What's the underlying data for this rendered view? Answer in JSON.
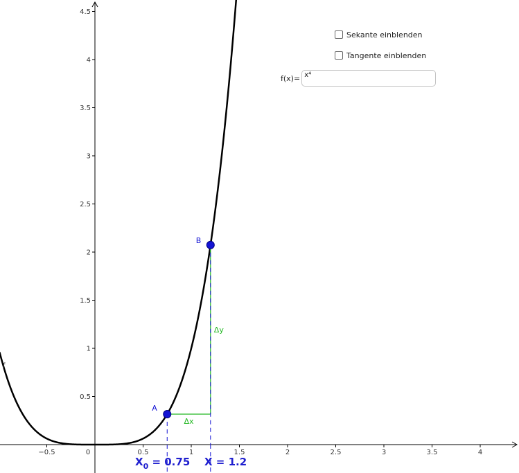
{
  "graph": {
    "function_label": "f",
    "point_a": {
      "label": "A",
      "x": 0.75,
      "y": 0.3164
    },
    "point_b": {
      "label": "B",
      "x": 1.2,
      "y": 2.0736
    },
    "delta_x_label": "Δx",
    "delta_y_label": "Δy",
    "x0_caption": {
      "main": "X",
      "sub": "0",
      "rest": " = 0.75"
    },
    "x_caption": "X = 1.2",
    "x_ticks": [
      "−0.5",
      "0",
      "0.5",
      "1",
      "1.5",
      "2",
      "2.5",
      "3",
      "3.5",
      "4"
    ],
    "y_ticks": [
      "0.5",
      "1",
      "1.5",
      "2",
      "2.5",
      "3",
      "3.5",
      "4",
      "4.5"
    ],
    "x_tick_values": [
      -0.5,
      0,
      0.5,
      1,
      1.5,
      2,
      2.5,
      3,
      3.5,
      4
    ],
    "y_tick_values": [
      0.5,
      1,
      1.5,
      2,
      2.5,
      3,
      3.5,
      4,
      4.5
    ]
  },
  "controls": {
    "secant_checkbox": {
      "label": "Sekante einblenden",
      "checked": false
    },
    "tangent_checkbox": {
      "label": "Tangente einblenden",
      "checked": false
    },
    "function_input": {
      "label": "f(x)=",
      "value": "x⁴"
    }
  },
  "colors": {
    "point": "#1414d4",
    "caption": "#1f1fcf",
    "delta": "#22b822",
    "curve": "#000000"
  }
}
